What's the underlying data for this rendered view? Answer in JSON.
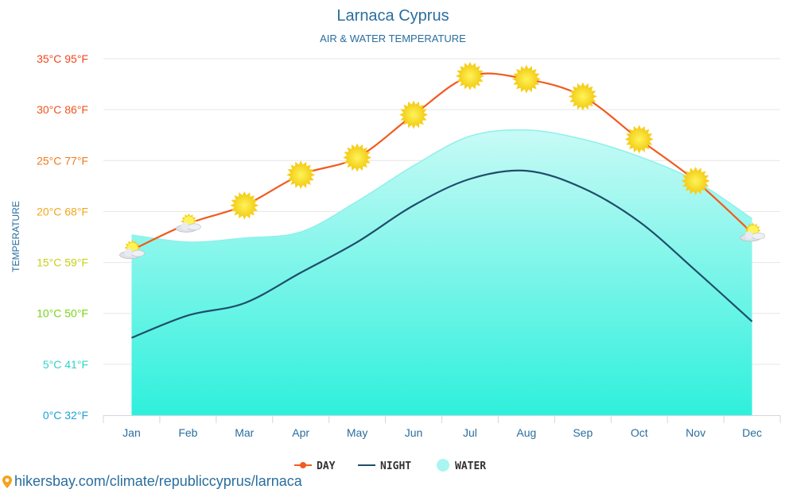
{
  "chart_data": {
    "type": "line",
    "title": "Larnaca Cyprus",
    "subtitle": "AIR & WATER TEMPERATURE",
    "ylabel": "TEMPERATURE",
    "xlabel": "",
    "ylim": [
      0,
      35
    ],
    "categories": [
      "Jan",
      "Feb",
      "Mar",
      "Apr",
      "May",
      "Jun",
      "Jul",
      "Aug",
      "Sep",
      "Oct",
      "Nov",
      "Dec"
    ],
    "y_ticks": [
      {
        "value": 0,
        "label": "0°C 32°F",
        "color": "#1aa3d9"
      },
      {
        "value": 5,
        "label": "5°C 41°F",
        "color": "#2fd3c8"
      },
      {
        "value": 10,
        "label": "10°C 50°F",
        "color": "#7ad31a"
      },
      {
        "value": 15,
        "label": "15°C 59°F",
        "color": "#c9cf1a"
      },
      {
        "value": 20,
        "label": "20°C 68°F",
        "color": "#f0a81c"
      },
      {
        "value": 25,
        "label": "25°C 77°F",
        "color": "#f07a1c"
      },
      {
        "value": 30,
        "label": "30°C 86°F",
        "color": "#f0541c"
      },
      {
        "value": 35,
        "label": "35°C 95°F",
        "color": "#f0451c"
      }
    ],
    "series": [
      {
        "name": "DAY",
        "color": "#f25a1f",
        "values": [
          16.2,
          18.8,
          20.6,
          23.6,
          25.3,
          29.5,
          33.3,
          33.0,
          31.3,
          27.1,
          23.0,
          17.9
        ],
        "icons": [
          "partly-cloudy",
          "partly-cloudy",
          "sun",
          "sun",
          "sun",
          "sun",
          "sun",
          "sun",
          "sun",
          "sun",
          "sun",
          "partly-cloudy"
        ]
      },
      {
        "name": "NIGHT",
        "color": "#1f4e6b",
        "values": [
          7.6,
          9.8,
          11.0,
          14.0,
          17.0,
          20.6,
          23.2,
          24.0,
          22.3,
          19.0,
          14.2,
          9.2
        ]
      },
      {
        "name": "WATER",
        "color": "#a8f5f2",
        "values": [
          17.7,
          17.0,
          17.4,
          18.0,
          21.0,
          24.5,
          27.4,
          28.0,
          27.1,
          25.4,
          23.0,
          19.3
        ]
      }
    ],
    "grid": true,
    "legend_position": "bottom-center"
  },
  "source_text": "hikersbay.com/climate/republiccyprus/larnaca"
}
